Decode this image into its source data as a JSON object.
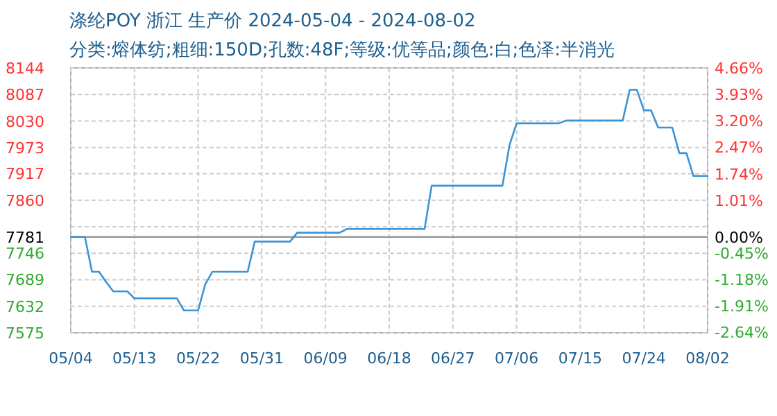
{
  "chart_data": {
    "type": "line",
    "title": "涤纶POY 浙江 生产价 2024-05-04 - 2024-08-02",
    "subtitle": "分类:熔体纺;粗细:150D;孔数:48F;等级:优等品;颜色:白;色泽:半消光",
    "x": [
      "2024-05-04",
      "2024-05-06",
      "2024-05-07",
      "2024-05-08",
      "2024-05-09",
      "2024-05-10",
      "2024-05-12",
      "2024-05-13",
      "2024-05-19",
      "2024-05-20",
      "2024-05-22",
      "2024-05-23",
      "2024-05-24",
      "2024-05-29",
      "2024-05-30",
      "2024-06-04",
      "2024-06-05",
      "2024-06-11",
      "2024-06-12",
      "2024-06-23",
      "2024-06-24",
      "2024-07-04",
      "2024-07-05",
      "2024-07-06",
      "2024-07-12",
      "2024-07-13",
      "2024-07-21",
      "2024-07-22",
      "2024-07-23",
      "2024-07-24",
      "2024-07-25",
      "2024-07-26",
      "2024-07-28",
      "2024-07-29",
      "2024-07-30",
      "2024-07-31",
      "2024-08-02"
    ],
    "series": [
      {
        "color": "#3a94d6",
        "values": [
          7781,
          7781,
          7706,
          7706,
          7684,
          7664,
          7664,
          7649,
          7649,
          7623,
          7623,
          7679,
          7706,
          7706,
          7771,
          7771,
          7790,
          7790,
          7798,
          7798,
          7891,
          7891,
          7978,
          8025,
          8025,
          8031,
          8031,
          8097,
          8097,
          8053,
          8053,
          8016,
          8016,
          7961,
          7961,
          7912,
          7912
        ]
      }
    ],
    "xlim": [
      "2024-05-04",
      "2024-08-02"
    ],
    "xticks": [
      {
        "value": "2024-05-04",
        "label": "05/04"
      },
      {
        "value": "2024-05-13",
        "label": "05/13"
      },
      {
        "value": "2024-05-22",
        "label": "05/22"
      },
      {
        "value": "2024-05-31",
        "label": "05/31"
      },
      {
        "value": "2024-06-09",
        "label": "06/09"
      },
      {
        "value": "2024-06-18",
        "label": "06/18"
      },
      {
        "value": "2024-06-27",
        "label": "06/27"
      },
      {
        "value": "2024-07-06",
        "label": "07/06"
      },
      {
        "value": "2024-07-15",
        "label": "07/15"
      },
      {
        "value": "2024-07-24",
        "label": "07/24"
      },
      {
        "value": "2024-08-02",
        "label": "08/02"
      }
    ],
    "ylim": [
      7575,
      8144
    ],
    "yticks": [
      8144,
      8087,
      8030,
      7973,
      7917,
      7860,
      {
        "value": 7803,
        "label": null
      },
      7781,
      7746,
      7689,
      7632,
      7575
    ],
    "y2lim": [
      -2.65,
      4.66
    ],
    "y2ticks": [
      {
        "value": 4.66,
        "label": "4.66%"
      },
      {
        "value": 3.93,
        "label": "3.93%"
      },
      {
        "value": 3.2,
        "label": "3.20%"
      },
      {
        "value": 2.47,
        "label": "2.47%"
      },
      {
        "value": 1.74,
        "label": "1.74%"
      },
      {
        "value": 1.01,
        "label": "1.01%"
      },
      {
        "value": 0.28,
        "label": null
      },
      {
        "value": 0,
        "label": "0.00%"
      },
      {
        "value": -0.45,
        "label": "-0.45%"
      },
      {
        "value": -1.18,
        "label": "-1.18%"
      },
      {
        "value": -1.91,
        "label": "-1.91%"
      },
      {
        "value": -2.64,
        "label": "-2.64%"
      }
    ],
    "ref_lines": [
      {
        "axis": "y",
        "value": 7781,
        "color": "#999999"
      }
    ],
    "grid": true,
    "marker": "none",
    "line_style": "solid"
  }
}
